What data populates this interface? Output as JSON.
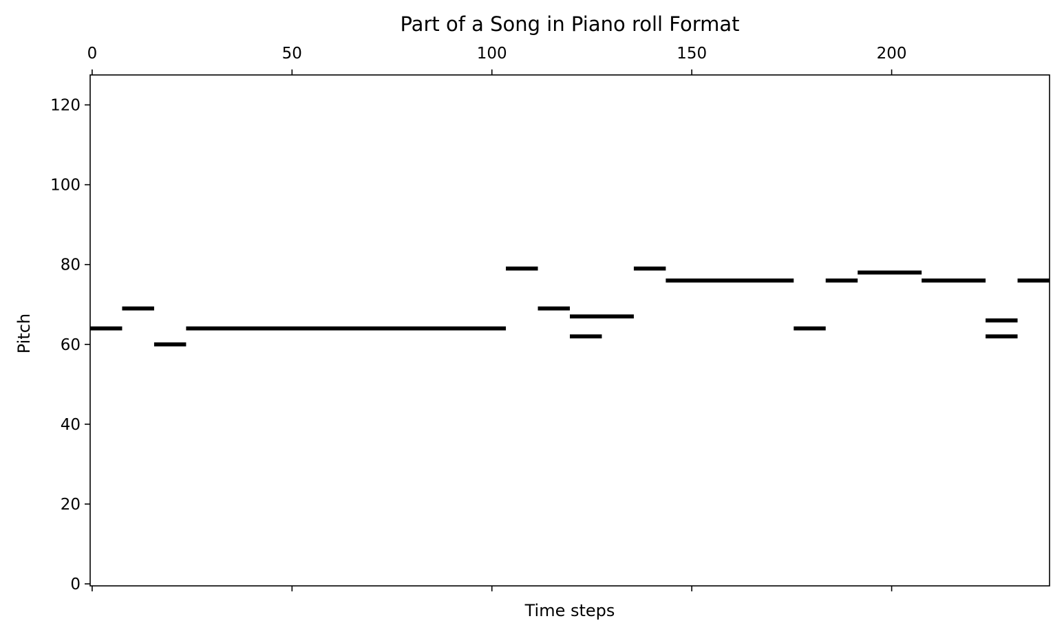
{
  "chart_data": {
    "type": "piano-roll",
    "title": "Part of a Song in Piano roll Format",
    "xlabel": "Time steps",
    "ylabel": "Pitch",
    "xlim": [
      -0.5,
      239.5
    ],
    "ylim": [
      -0.5,
      127.5
    ],
    "x_ticks": [
      0,
      50,
      100,
      150,
      200
    ],
    "x_tick_labels": [
      "0",
      "50",
      "100",
      "150",
      "200"
    ],
    "x_tick_label_position": "top",
    "y_ticks": [
      0,
      20,
      40,
      60,
      80,
      100,
      120
    ],
    "y_tick_labels": [
      "0",
      "20",
      "40",
      "60",
      "80",
      "100",
      "120"
    ],
    "grid": false,
    "note_color": "#000000",
    "notes": [
      {
        "pitch": 64,
        "start": 0,
        "end": 8
      },
      {
        "pitch": 69,
        "start": 8,
        "end": 16
      },
      {
        "pitch": 60,
        "start": 16,
        "end": 24
      },
      {
        "pitch": 64,
        "start": 24,
        "end": 104
      },
      {
        "pitch": 79,
        "start": 104,
        "end": 112
      },
      {
        "pitch": 69,
        "start": 112,
        "end": 120
      },
      {
        "pitch": 67,
        "start": 120,
        "end": 136
      },
      {
        "pitch": 62,
        "start": 120,
        "end": 128
      },
      {
        "pitch": 79,
        "start": 136,
        "end": 144
      },
      {
        "pitch": 76,
        "start": 144,
        "end": 176
      },
      {
        "pitch": 64,
        "start": 176,
        "end": 184
      },
      {
        "pitch": 76,
        "start": 184,
        "end": 192
      },
      {
        "pitch": 78,
        "start": 192,
        "end": 208
      },
      {
        "pitch": 76,
        "start": 208,
        "end": 224
      },
      {
        "pitch": 66,
        "start": 224,
        "end": 232
      },
      {
        "pitch": 62,
        "start": 224,
        "end": 232
      },
      {
        "pitch": 76,
        "start": 232,
        "end": 240
      }
    ]
  }
}
